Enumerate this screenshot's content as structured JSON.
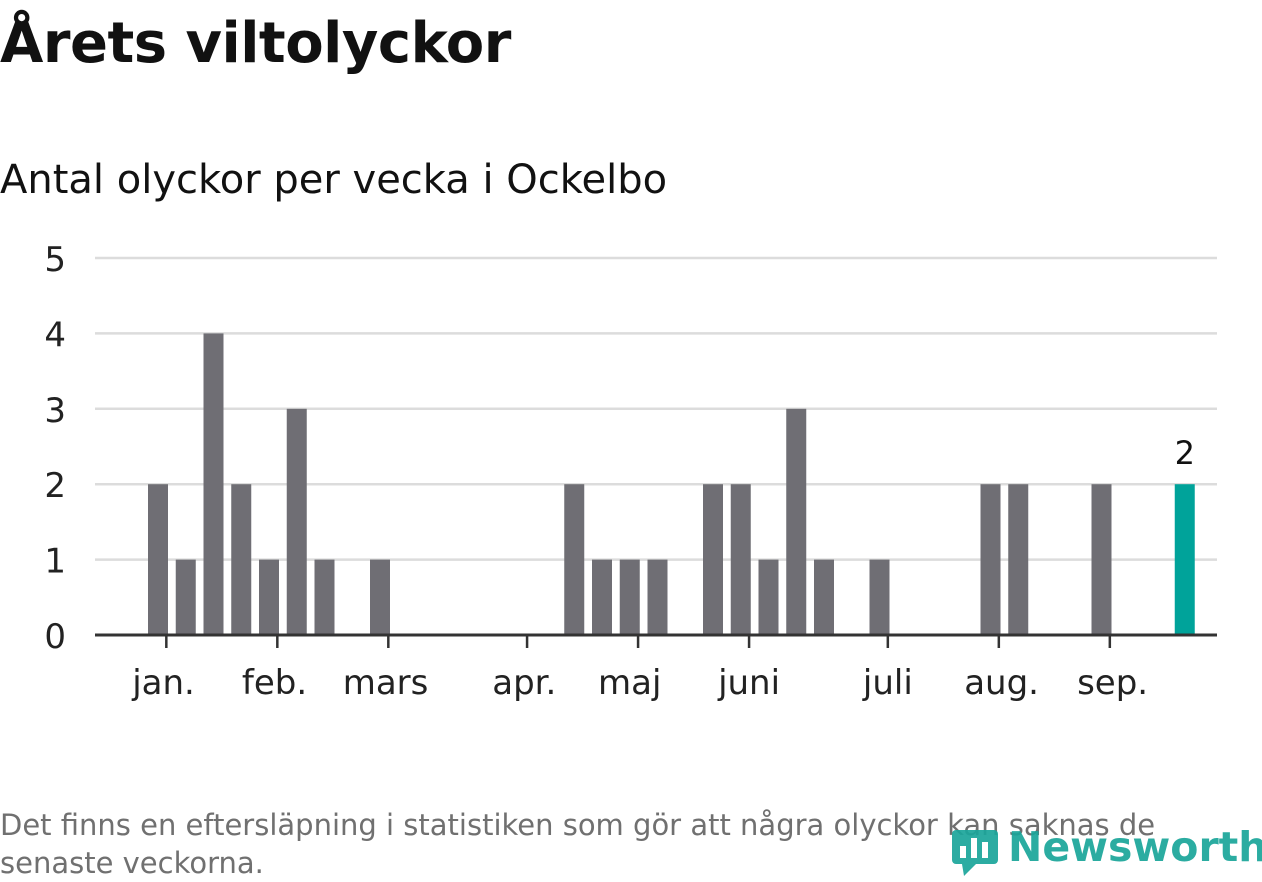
{
  "header": {
    "title": "Årets viltolyckor",
    "subtitle": "Antal olyckor per vecka i Ockelbo"
  },
  "chart_data": {
    "type": "bar",
    "ylim": [
      0,
      5
    ],
    "yticks": [
      0,
      1,
      2,
      3,
      4,
      5
    ],
    "grid": true,
    "weeks": [
      1,
      2,
      3,
      4,
      5,
      6,
      7,
      8,
      9,
      10,
      11,
      12,
      13,
      14,
      15,
      16,
      17,
      18,
      19,
      20,
      21,
      22,
      23,
      24,
      25,
      26,
      27,
      28,
      29,
      30,
      31,
      32,
      33,
      34,
      35,
      36,
      37,
      38,
      39,
      40
    ],
    "values": [
      0,
      0,
      2,
      1,
      4,
      2,
      1,
      3,
      1,
      0,
      1,
      0,
      0,
      0,
      0,
      0,
      0,
      2,
      1,
      1,
      1,
      0,
      2,
      2,
      1,
      3,
      1,
      0,
      1,
      0,
      0,
      0,
      2,
      2,
      0,
      0,
      2,
      0,
      0,
      2
    ],
    "highlight_index": 39,
    "highlight_label": "2",
    "month_labels": [
      {
        "label": "jan.",
        "week": 3.2
      },
      {
        "label": "feb.",
        "week": 7.2
      },
      {
        "label": "mars",
        "week": 11.2
      },
      {
        "label": "apr.",
        "week": 16.2
      },
      {
        "label": "maj",
        "week": 20.0
      },
      {
        "label": "juni",
        "week": 24.3
      },
      {
        "label": "juli",
        "week": 29.3
      },
      {
        "label": "aug.",
        "week": 33.4
      },
      {
        "label": "sep.",
        "week": 37.4
      }
    ],
    "month_ticks": [
      3.3,
      7.3,
      11.3,
      16.3,
      20.3,
      24.3,
      29.3,
      33.3,
      37.3
    ]
  },
  "colors": {
    "bar": "#6f6e74",
    "highlight": "#00a39a",
    "grid": "#dcdcdc",
    "axis": "#333333",
    "logo": "#1aa59a"
  },
  "footer": {
    "note": "Det finns en eftersläpning i statistiken som gör att några olyckor kan saknas de senaste veckorna.",
    "logo_text": "Newsworthy",
    "logo_icon": "bar-chart-speech-icon"
  }
}
